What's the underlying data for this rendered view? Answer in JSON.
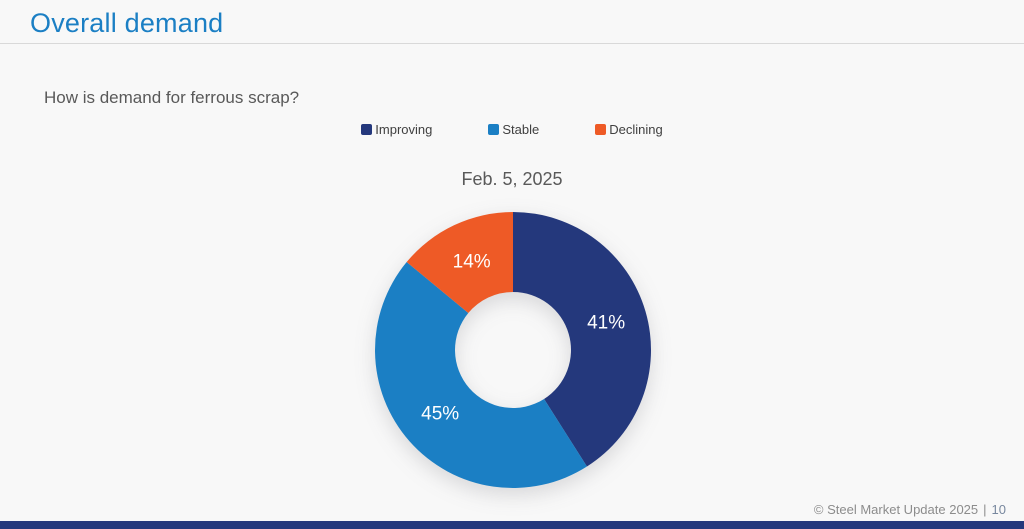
{
  "page": {
    "title": "Overall demand",
    "question": "How is demand for ferrous scrap?",
    "footer": "© Steel Market Update 2025",
    "footer_separator": "|",
    "page_number": "10"
  },
  "colors": {
    "background": "#f8f8f8",
    "title": "#1b7fc4",
    "text_gray": "#595959",
    "legend_text": "#404040",
    "divider": "#d9d9d9",
    "footer_text": "#8c8c8c",
    "page_number": "#77879e",
    "footer_bar": "#24387c",
    "slice_label": "#ffffff"
  },
  "chart_data": {
    "type": "pie",
    "donut": true,
    "title": "Feb. 5, 2025",
    "labels": [
      "Improving",
      "Stable",
      "Declining"
    ],
    "values": [
      41,
      45,
      14
    ],
    "unit": "%",
    "colors": [
      "#24387c",
      "#1b7fc4",
      "#ee5a26"
    ],
    "start_angle": "top",
    "direction": "clockwise",
    "legend_position": "top",
    "grid": false
  }
}
